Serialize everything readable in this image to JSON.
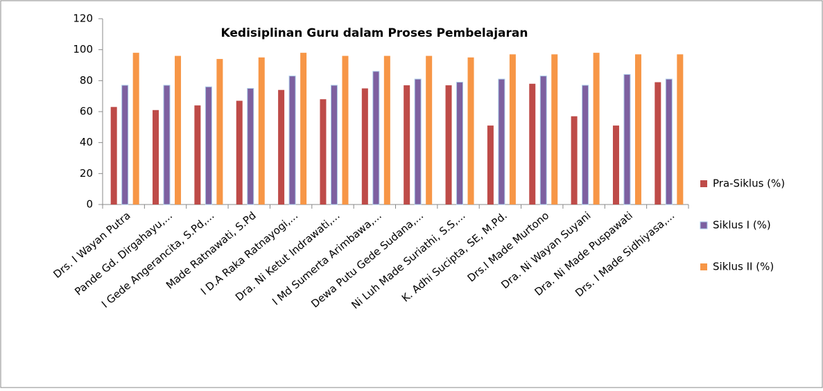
{
  "chart_data": {
    "type": "bar",
    "title": "Kedisiplinan Guru dalam Proses Pembelajaran",
    "categories": [
      "Drs. I Wayan Putra",
      "Pande Gd. Dirgahayu,...",
      "I Gede Angerancita, S.Pd,...",
      "Made Ratnawati, S.Pd",
      "I D.A Raka Ratnayogi,...",
      "Dra. Ni Ketut Indrawati,...",
      "I Md Sumerta Arimbawa,...",
      "Dewa Putu Gede Sudana,...",
      "Ni Luh Made Suriathi, S.S,...",
      "K. Adhi Sucipta, SE, M.Pd.",
      "Drs.I Made Murtono",
      "Dra. Ni Wayan Suyani",
      "Dra. Ni Made Puspawati",
      "Drs. I Made Sidhiyasa,..."
    ],
    "series": [
      {
        "name": "Pra-Siklus (%)",
        "color": "#be4b48",
        "values": [
          63,
          61,
          64,
          67,
          74,
          68,
          75,
          77,
          77,
          51,
          78,
          57,
          51,
          79
        ]
      },
      {
        "name": "Siklus I (%)",
        "color": "#7d60a0",
        "values": [
          77,
          77,
          76,
          75,
          83,
          77,
          86,
          81,
          79,
          81,
          83,
          77,
          84,
          81
        ]
      },
      {
        "name": "Siklus II (%)",
        "color": "#f79646",
        "values": [
          98,
          96,
          94,
          95,
          98,
          96,
          96,
          96,
          95,
          97,
          97,
          98,
          97,
          97
        ]
      }
    ],
    "ylim": [
      0,
      120
    ],
    "yticks": [
      0,
      20,
      40,
      60,
      80,
      100,
      120
    ],
    "grid": false,
    "legend": "right"
  }
}
